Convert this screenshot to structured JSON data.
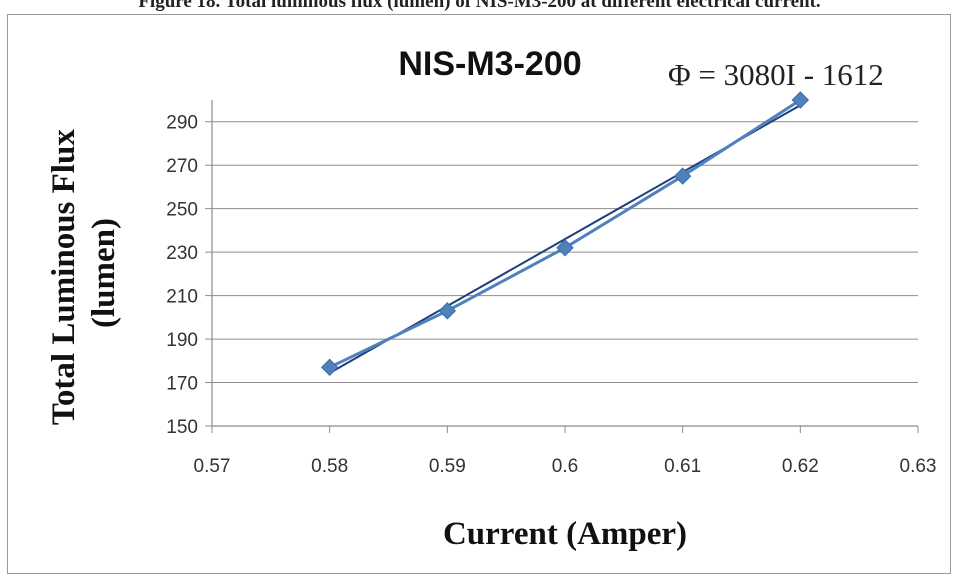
{
  "caption": "Figure 18. Total luminous flux (lumen) of NIS-M3-200 at different electrical current.",
  "chart_data": {
    "type": "line",
    "title": "NIS-M3-200",
    "annotation": "Φ = 3080I - 1612",
    "xlabel": "Current (Amper)",
    "ylabel_lines": [
      "Total Luminous Flux",
      "(lumen)"
    ],
    "xlim": [
      0.57,
      0.63
    ],
    "ylim": [
      150,
      300
    ],
    "x_ticks": [
      0.57,
      0.58,
      0.59,
      0.6,
      0.61,
      0.62,
      0.63
    ],
    "x_tick_labels": [
      "0.57",
      "0.58",
      "0.59",
      "0.6",
      "0.61",
      "0.62",
      "0.63"
    ],
    "y_ticks": [
      150,
      170,
      190,
      210,
      230,
      250,
      270,
      290
    ],
    "y_tick_labels": [
      "150",
      "170",
      "190",
      "210",
      "230",
      "250",
      "270",
      "290"
    ],
    "grid": true,
    "legend": "none",
    "series": [
      {
        "x": [
          0.58,
          0.59,
          0.6,
          0.61,
          0.62
        ],
        "y": [
          177,
          203,
          232,
          265,
          300
        ],
        "color": "#4f81bd",
        "marker": "diamond"
      }
    ],
    "trendline": {
      "slope": 3080,
      "intercept": -1612,
      "color": "#1f3f7a"
    }
  }
}
